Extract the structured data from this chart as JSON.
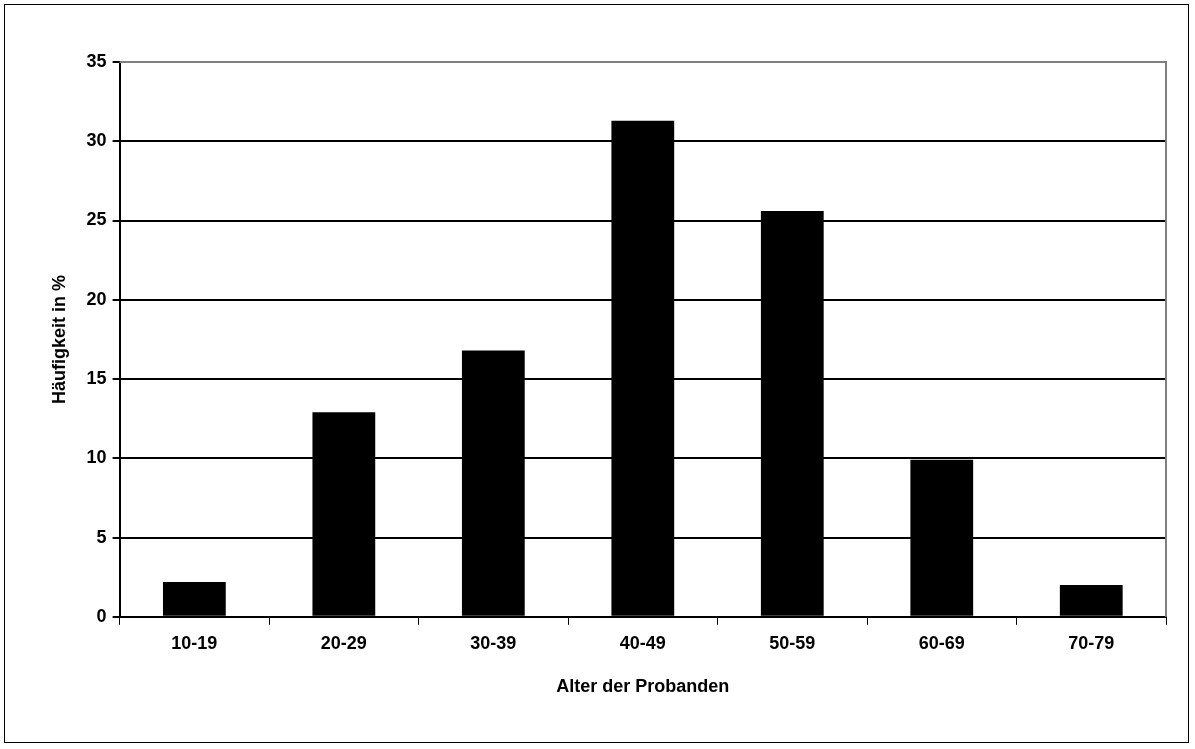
{
  "chart_data": {
    "type": "bar",
    "xlabel": "Alter der Probanden",
    "ylabel": "Häufigkeit in %",
    "categories": [
      "10-19",
      "20-29",
      "30-39",
      "40-49",
      "50-59",
      "60-69",
      "70-79"
    ],
    "values": [
      2.2,
      12.9,
      16.8,
      31.3,
      25.6,
      9.9,
      2.0
    ],
    "color": "#000000",
    "ylim": [
      0,
      35
    ],
    "yticks": [
      0,
      5,
      10,
      15,
      20,
      25,
      30,
      35
    ],
    "grid": "y",
    "legend": false
  }
}
